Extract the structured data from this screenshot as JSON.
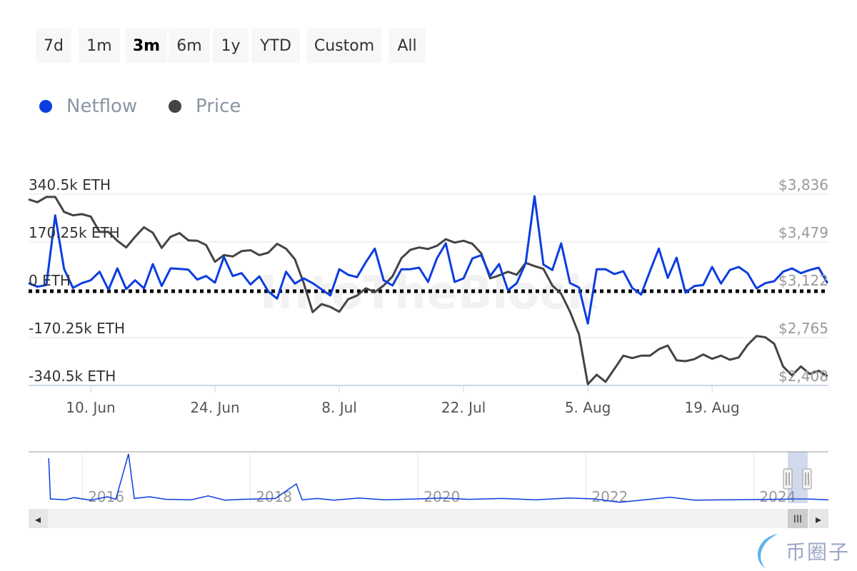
{
  "range_buttons": [
    {
      "label": "7d",
      "selected": false
    },
    {
      "label": "1m",
      "selected": false
    },
    {
      "label": "3m",
      "selected": true
    },
    {
      "label": "6m",
      "selected": false
    },
    {
      "label": "1y",
      "selected": false
    },
    {
      "label": "YTD",
      "selected": false
    },
    {
      "label": "Custom",
      "selected": false
    },
    {
      "label": "All",
      "selected": false
    }
  ],
  "legend": [
    {
      "label": "Netflow",
      "color": "#0b3de0"
    },
    {
      "label": "Price",
      "color": "#444444"
    }
  ],
  "watermark": "IntoTheBlock",
  "logo_text": "币圈子",
  "chart_data": {
    "type": "line",
    "legend_position": "top-left",
    "grid": true,
    "x_tick_labels": [
      "10. Jun",
      "24. Jun",
      "8. Jul",
      "22. Jul",
      "5. Aug",
      "19. Aug"
    ],
    "x_tick_dates": [
      "2024-06-10",
      "2024-06-24",
      "2024-07-08",
      "2024-07-22",
      "2024-08-05",
      "2024-08-19"
    ],
    "y_left": {
      "ticks": [
        "340.5k ETH",
        "170.25k ETH",
        "0 ETH",
        "-170.25k ETH",
        "-340.5k ETH"
      ],
      "range": [
        -340.5,
        340.5
      ],
      "unit": "k ETH"
    },
    "y_right": {
      "ticks": [
        "$3,836",
        "$3,479",
        "$3,122",
        "$2,765",
        "$2,408"
      ],
      "range": [
        2408,
        3836
      ],
      "unit": "USD"
    },
    "zero_line": "dotted",
    "x": [
      "2024-06-03",
      "2024-06-04",
      "2024-06-05",
      "2024-06-06",
      "2024-06-07",
      "2024-06-08",
      "2024-06-09",
      "2024-06-10",
      "2024-06-11",
      "2024-06-12",
      "2024-06-13",
      "2024-06-14",
      "2024-06-15",
      "2024-06-16",
      "2024-06-17",
      "2024-06-18",
      "2024-06-19",
      "2024-06-20",
      "2024-06-21",
      "2024-06-22",
      "2024-06-23",
      "2024-06-24",
      "2024-06-25",
      "2024-06-26",
      "2024-06-27",
      "2024-06-28",
      "2024-06-29",
      "2024-06-30",
      "2024-07-01",
      "2024-07-02",
      "2024-07-03",
      "2024-07-04",
      "2024-07-05",
      "2024-07-06",
      "2024-07-07",
      "2024-07-08",
      "2024-07-09",
      "2024-07-10",
      "2024-07-11",
      "2024-07-12",
      "2024-07-13",
      "2024-07-14",
      "2024-07-15",
      "2024-07-16",
      "2024-07-17",
      "2024-07-18",
      "2024-07-19",
      "2024-07-20",
      "2024-07-21",
      "2024-07-22",
      "2024-07-23",
      "2024-07-24",
      "2024-07-25",
      "2024-07-26",
      "2024-07-27",
      "2024-07-28",
      "2024-07-29",
      "2024-07-30",
      "2024-07-31",
      "2024-08-01",
      "2024-08-02",
      "2024-08-03",
      "2024-08-04",
      "2024-08-05",
      "2024-08-06",
      "2024-08-07",
      "2024-08-08",
      "2024-08-09",
      "2024-08-10",
      "2024-08-11",
      "2024-08-12",
      "2024-08-13",
      "2024-08-14",
      "2024-08-15",
      "2024-08-16",
      "2024-08-17",
      "2024-08-18",
      "2024-08-19",
      "2024-08-20",
      "2024-08-21",
      "2024-08-22",
      "2024-08-23",
      "2024-08-24",
      "2024-08-25",
      "2024-08-26",
      "2024-08-27",
      "2024-08-28",
      "2024-08-29",
      "2024-08-30",
      "2024-08-31",
      "2024-09-01"
    ],
    "series": [
      {
        "name": "Netflow",
        "axis": "left",
        "color": "#0b3de0",
        "values": [
          23.6,
          10.9,
          17.0,
          264.8,
          74.5,
          6.9,
          23.6,
          33.8,
          64.3,
          0,
          76.2,
          2.5,
          33.8,
          5.1,
          91.5,
          13.5,
          76.2,
          74.5,
          71.9,
          36.3,
          49.1,
          25.4,
          116.9,
          49.1,
          59.3,
          19.1,
          47.8,
          -5.8,
          -31.2,
          64.3,
          22.1,
          40.7,
          23.6,
          1.8,
          -20.3,
          73.2,
          53.4,
          45.0,
          98.3,
          146.6,
          33.8,
          15.2,
          73.2,
          73.2,
          78.8,
          28.0,
          111.8,
          165.1,
          27.9,
          40.7,
          111.8,
          123.0,
          49.1,
          91.5,
          -1.8,
          23.6,
          95.3,
          332.8,
          89.7,
          70.4,
          165.1,
          23.6,
          8.4,
          -120.2,
          73.2,
          73.2,
          55.9,
          66.1,
          6.9,
          -17.0,
          66.1,
          146.6,
          42.4,
          114.1,
          -10.2,
          13.5,
          17.0,
          81.3,
          22.1,
          70.4,
          81.3,
          59.3,
          5.1,
          23.6,
          30.5,
          64.3,
          76.2,
          59.3,
          70.4,
          78.8,
          23.6
        ]
      },
      {
        "name": "Price",
        "axis": "right",
        "color": "#444444",
        "values": [
          3797,
          3776,
          3815,
          3815,
          3704,
          3678,
          3687,
          3669,
          3554,
          3554,
          3488,
          3438,
          3518,
          3589,
          3548,
          3435,
          3518,
          3545,
          3491,
          3488,
          3456,
          3331,
          3381,
          3371,
          3411,
          3417,
          3381,
          3399,
          3465,
          3429,
          3350,
          3172,
          2955,
          3015,
          2994,
          2958,
          3051,
          3079,
          3133,
          3104,
          3154,
          3222,
          3358,
          3420,
          3438,
          3426,
          3450,
          3500,
          3474,
          3488,
          3465,
          3394,
          3207,
          3229,
          3257,
          3234,
          3323,
          3299,
          3278,
          3154,
          3092,
          2958,
          2790,
          2417,
          2488,
          2435,
          2532,
          2630,
          2612,
          2630,
          2630,
          2678,
          2706,
          2595,
          2589,
          2604,
          2639,
          2607,
          2630,
          2600,
          2617,
          2710,
          2777,
          2767,
          2719,
          2550,
          2483,
          2550,
          2493,
          2518,
          2476
        ]
      }
    ]
  },
  "navigator": {
    "year_labels": [
      "2016",
      "2018",
      "2020",
      "2022",
      "2024"
    ],
    "years": [
      2016,
      2018,
      2020,
      2022,
      2024
    ],
    "range": [
      2015.36,
      2024.89
    ],
    "selected_range": [
      "2024-06-03",
      "2024-09-01"
    ],
    "netflow_relative": [
      [
        2015.6,
        1.0
      ],
      [
        2015.62,
        0.05
      ],
      [
        2015.8,
        0.03
      ],
      [
        2015.9,
        0.08
      ],
      [
        2016.1,
        0.02
      ],
      [
        2016.3,
        0.1
      ],
      [
        2016.4,
        0.04
      ],
      [
        2016.55,
        1.1
      ],
      [
        2016.62,
        0.06
      ],
      [
        2016.8,
        0.1
      ],
      [
        2017.0,
        0.04
      ],
      [
        2017.3,
        0.03
      ],
      [
        2017.5,
        0.12
      ],
      [
        2017.7,
        0.02
      ],
      [
        2017.9,
        0.04
      ],
      [
        2018.3,
        0.06
      ],
      [
        2018.55,
        0.4
      ],
      [
        2018.62,
        0.03
      ],
      [
        2018.8,
        0.06
      ],
      [
        2019.0,
        0.02
      ],
      [
        2019.3,
        0.07
      ],
      [
        2019.6,
        0.03
      ],
      [
        2020.0,
        0.05
      ],
      [
        2020.3,
        0.07
      ],
      [
        2020.6,
        0.04
      ],
      [
        2021.0,
        0.06
      ],
      [
        2021.4,
        0.03
      ],
      [
        2021.8,
        0.07
      ],
      [
        2022.1,
        0.05
      ],
      [
        2022.4,
        -0.03
      ],
      [
        2022.7,
        0.03
      ],
      [
        2023.0,
        0.09
      ],
      [
        2023.3,
        0.02
      ],
      [
        2023.7,
        0.03
      ],
      [
        2024.2,
        0.04
      ],
      [
        2024.6,
        0.05
      ],
      [
        2024.89,
        0.03
      ]
    ]
  },
  "scrollbar": {
    "left_arrow": "◂",
    "right_arrow": "▸",
    "thumb_grip": "III"
  }
}
